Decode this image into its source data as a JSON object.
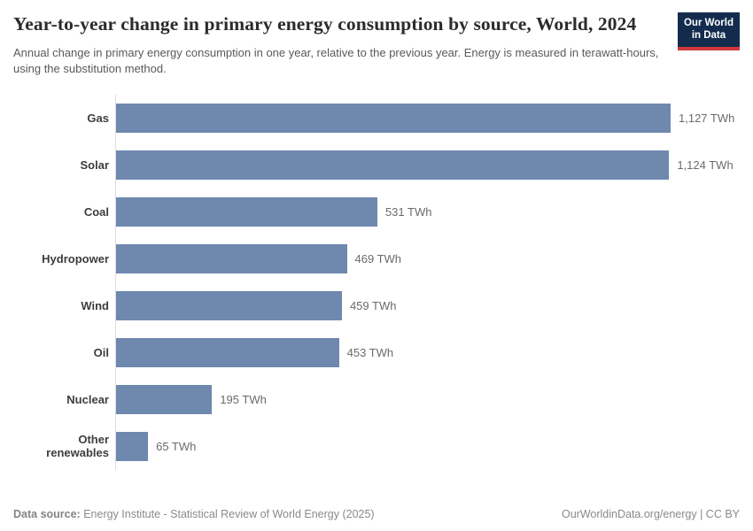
{
  "header": {
    "title": "Year-to-year change in primary energy consumption by source, World, 2024",
    "subtitle": "Annual change in primary energy consumption in one year, relative to the previous year. Energy is measured in terawatt-hours, using the substitution method.",
    "logo": {
      "line1": "Our World",
      "line2": "in Data",
      "bg_color": "#132c4d",
      "stripe_color": "#d0383c"
    }
  },
  "chart_data": {
    "type": "bar",
    "orientation": "horizontal",
    "title": "Year-to-year change in primary energy consumption by source, World, 2024",
    "categories": [
      "Gas",
      "Solar",
      "Coal",
      "Hydropower",
      "Wind",
      "Oil",
      "Nuclear",
      "Other renewables"
    ],
    "values": [
      1127,
      1124,
      531,
      469,
      459,
      453,
      195,
      65
    ],
    "value_labels": [
      "1,127 TWh",
      "1,124 TWh",
      "531 TWh",
      "469 TWh",
      "459 TWh",
      "453 TWh",
      "195 TWh",
      "65 TWh"
    ],
    "unit": "TWh",
    "xlim": [
      0,
      1127
    ],
    "grid": false,
    "legend": "none",
    "bar_color": "#6e88ae",
    "axis_line_color": "#dcdcdc"
  },
  "footer": {
    "datasource_label": "Data source:",
    "datasource_text": " Energy Institute - Statistical Review of World Energy (2025)",
    "credit": "OurWorldinData.org/energy | CC BY"
  }
}
